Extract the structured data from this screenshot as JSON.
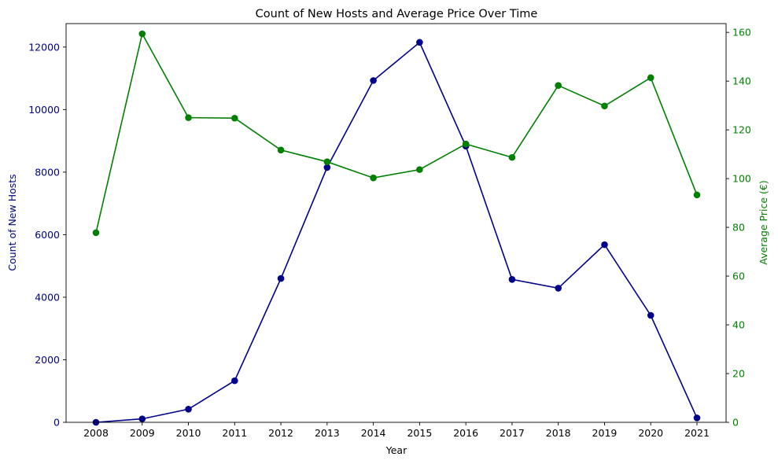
{
  "chart_data": {
    "type": "line",
    "title": "Count of New Hosts and Average Price Over Time",
    "xlabel": "Year",
    "categories": [
      "2008",
      "2009",
      "2010",
      "2011",
      "2012",
      "2013",
      "2014",
      "2015",
      "2016",
      "2017",
      "2018",
      "2019",
      "2020",
      "2021"
    ],
    "y_left": {
      "label": "Count of New Hosts",
      "color": "#00008b",
      "ticks": [
        0,
        2000,
        4000,
        6000,
        8000,
        10000,
        12000
      ],
      "ylim": [
        0,
        12750
      ]
    },
    "y_right": {
      "label": "Average Price (€)",
      "color": "#008000",
      "ticks": [
        0,
        20,
        40,
        60,
        80,
        100,
        120,
        140,
        160
      ],
      "ylim": [
        0,
        163.6
      ]
    },
    "series": [
      {
        "axis": "left",
        "color": "#00008b",
        "values": [
          0,
          110,
          420,
          1330,
          4600,
          8150,
          10930,
          12150,
          8830,
          4570,
          4290,
          5680,
          3420,
          140
        ]
      },
      {
        "axis": "right",
        "color": "#008000",
        "values": [
          77.8,
          159.4,
          125.0,
          124.8,
          111.7,
          106.9,
          100.3,
          103.7,
          114.2,
          108.7,
          138.2,
          129.8,
          141.4,
          93.3
        ]
      }
    ],
    "grid": false,
    "legend": "none"
  }
}
